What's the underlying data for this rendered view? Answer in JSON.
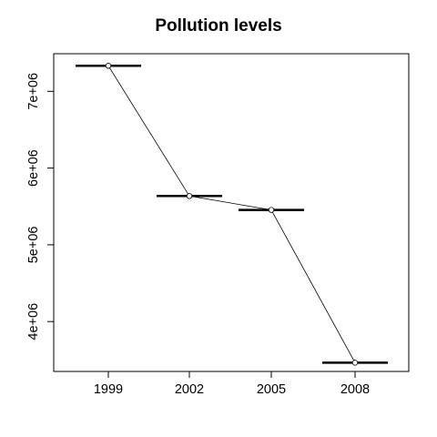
{
  "chart_data": {
    "type": "line",
    "title": "Pollution levels",
    "xlabel": "",
    "ylabel": "",
    "categories": [
      "1999",
      "2002",
      "2005",
      "2008"
    ],
    "series": [
      {
        "values": [
          7332967,
          5635780,
          5454703,
          3464206
        ]
      }
    ],
    "markers": "open-circle",
    "bar_segments": true,
    "ylim": [
      3350000,
      7490000
    ],
    "yticks": [
      4000000,
      5000000,
      6000000,
      7000000
    ],
    "ytick_labels": [
      "4e+06",
      "5e+06",
      "6e+06",
      "7e+06"
    ],
    "grid": false,
    "legend": "none"
  }
}
